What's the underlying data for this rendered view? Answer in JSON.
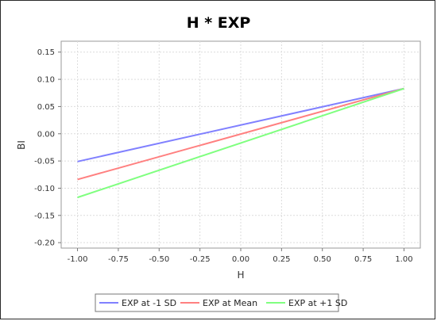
{
  "chart_data": {
    "type": "line",
    "title": "H * EXP",
    "xlabel": "H",
    "ylabel": "BI",
    "xlim": [
      -1.1,
      1.1
    ],
    "ylim": [
      -0.21,
      0.17
    ],
    "xticks": [
      "-1.00",
      "-0.75",
      "-0.50",
      "-0.25",
      "0.00",
      "0.25",
      "0.50",
      "0.75",
      "1.00"
    ],
    "xtick_values": [
      -1,
      -0.75,
      -0.5,
      -0.25,
      0,
      0.25,
      0.5,
      0.75,
      1
    ],
    "yticks": [
      "0.15",
      "0.10",
      "0.05",
      "0.00",
      "-0.05",
      "-0.10",
      "-0.15",
      "-0.20"
    ],
    "ytick_values": [
      0.15,
      0.1,
      0.05,
      0.0,
      -0.05,
      -0.1,
      -0.15,
      -0.2
    ],
    "grid": true,
    "legend_position": "bottom",
    "x": [
      -1.0,
      1.0
    ],
    "series": [
      {
        "name": "EXP at -1 SD",
        "color": "#8080ff",
        "values": [
          -0.051,
          0.083
        ]
      },
      {
        "name": "EXP at Mean",
        "color": "#ff8080",
        "values": [
          -0.084,
          0.083
        ]
      },
      {
        "name": "EXP at +1 SD",
        "color": "#80ff80",
        "values": [
          -0.117,
          0.083
        ]
      }
    ]
  }
}
